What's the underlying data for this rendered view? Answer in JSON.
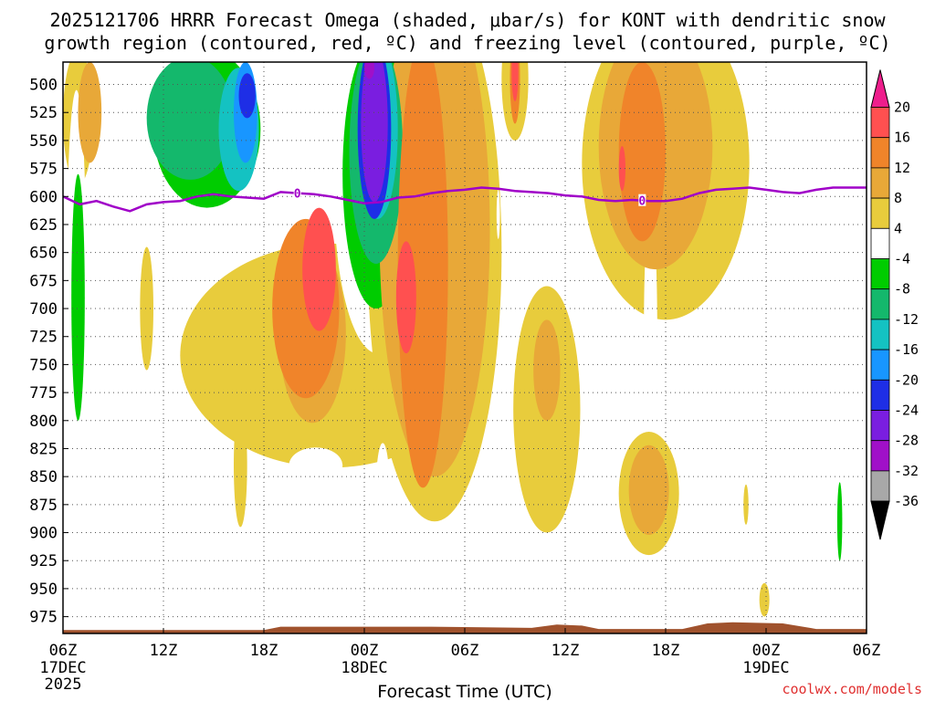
{
  "chart_data": {
    "type": "heatmap",
    "title_line1": "2025121706 HRRR Forecast Omega (shaded, μbar/s) for KONT with dendritic snow",
    "title_line2": "growth region (contoured, red, ºC) and freezing level (contoured, purple, ºC)",
    "xlabel": "Forecast Time (UTC)",
    "ylabel": "",
    "credit": "coolwx.com/models",
    "y_axis": {
      "units": "hPa",
      "range": [
        990,
        480
      ],
      "ticks": [
        500,
        525,
        550,
        575,
        600,
        625,
        650,
        675,
        700,
        725,
        750,
        775,
        800,
        825,
        850,
        875,
        900,
        925,
        950,
        975
      ]
    },
    "x_axis": {
      "units": "forecast hour",
      "range": [
        0,
        48
      ],
      "ticks": [
        {
          "hour": 0,
          "label": "06Z",
          "date": "17DEC",
          "year": "2025"
        },
        {
          "hour": 6,
          "label": "12Z",
          "date": "",
          "year": ""
        },
        {
          "hour": 12,
          "label": "18Z",
          "date": "",
          "year": ""
        },
        {
          "hour": 18,
          "label": "00Z",
          "date": "18DEC",
          "year": ""
        },
        {
          "hour": 24,
          "label": "06Z",
          "date": "",
          "year": ""
        },
        {
          "hour": 30,
          "label": "12Z",
          "date": "",
          "year": ""
        },
        {
          "hour": 36,
          "label": "18Z",
          "date": "",
          "year": ""
        },
        {
          "hour": 42,
          "label": "00Z",
          "date": "19DEC",
          "year": ""
        },
        {
          "hour": 48,
          "label": "06Z",
          "date": "",
          "year": ""
        }
      ]
    },
    "colorbar": {
      "labels": [
        "20",
        "16",
        "12",
        "8",
        "4",
        "-4",
        "-8",
        "-12",
        "-16",
        "-20",
        "-24",
        "-28",
        "-32",
        "-36"
      ],
      "colors": [
        "#ff5050",
        "#f0842a",
        "#e8a838",
        "#e8cc3c",
        "#ffffff",
        "#00cc00",
        "#14b86c",
        "#14c2c2",
        "#1896ff",
        "#1e2ee6",
        "#7a1ee0",
        "#a010c8",
        "#a8a8a8"
      ],
      "top_color": "#ee1e8c",
      "bottom_color": "#000000"
    },
    "freezing_level": {
      "label": "0",
      "color": "#a000c8",
      "points": [
        [
          0,
          600
        ],
        [
          1,
          607
        ],
        [
          2,
          604
        ],
        [
          3,
          609
        ],
        [
          4,
          613
        ],
        [
          5,
          607
        ],
        [
          6,
          605
        ],
        [
          7,
          604
        ],
        [
          8,
          600
        ],
        [
          9,
          598
        ],
        [
          10,
          600
        ],
        [
          11,
          601
        ],
        [
          12,
          602
        ],
        [
          13,
          596
        ],
        [
          14,
          597
        ],
        [
          15,
          598
        ],
        [
          16,
          600
        ],
        [
          17,
          603
        ],
        [
          18,
          606
        ],
        [
          19,
          605
        ],
        [
          20,
          601
        ],
        [
          21,
          600
        ],
        [
          22,
          597
        ],
        [
          23,
          595
        ],
        [
          24,
          594
        ],
        [
          25,
          592
        ],
        [
          26,
          593
        ],
        [
          27,
          595
        ],
        [
          28,
          596
        ],
        [
          29,
          597
        ],
        [
          30,
          599
        ],
        [
          31,
          600
        ],
        [
          32,
          603
        ],
        [
          33,
          604
        ],
        [
          34,
          603
        ],
        [
          35,
          604
        ],
        [
          36,
          604
        ],
        [
          37,
          602
        ],
        [
          38,
          597
        ],
        [
          39,
          594
        ],
        [
          40,
          593
        ],
        [
          41,
          592
        ],
        [
          42,
          594
        ],
        [
          43,
          596
        ],
        [
          44,
          597
        ],
        [
          45,
          594
        ],
        [
          46,
          592
        ],
        [
          47,
          592
        ],
        [
          48,
          592
        ]
      ],
      "label_hours": [
        14,
        34.6
      ]
    },
    "terrain": {
      "color": "#a0522d",
      "points": [
        [
          0,
          987
        ],
        [
          12,
          987
        ],
        [
          13,
          984
        ],
        [
          18,
          984
        ],
        [
          22,
          984
        ],
        [
          28,
          985
        ],
        [
          29.5,
          982
        ],
        [
          31,
          983
        ],
        [
          32,
          986
        ],
        [
          37,
          986
        ],
        [
          38.5,
          981
        ],
        [
          40,
          980
        ],
        [
          43,
          981
        ],
        [
          45,
          986
        ],
        [
          48,
          986
        ]
      ]
    },
    "omega_regions": [
      {
        "value": 4,
        "center": [
          0.9,
          530
        ],
        "extent": [
          0.9,
          60
        ]
      },
      {
        "value": 8,
        "center": [
          1.6,
          525
        ],
        "extent": [
          0.7,
          45
        ]
      },
      {
        "value": -4,
        "center": [
          0.8,
          680
        ],
        "extent": [
          0.6,
          175
        ]
      },
      {
        "value": -8,
        "center": [
          0.9,
          690
        ],
        "extent": [
          0.4,
          110
        ]
      },
      {
        "value": -4,
        "center": [
          2.0,
          905
        ],
        "extent": [
          0.2,
          28
        ]
      },
      {
        "value": 4,
        "center": [
          5.0,
          700
        ],
        "extent": [
          0.4,
          55
        ]
      },
      {
        "value": -4,
        "center": [
          8.8,
          560
        ],
        "extent": [
          4.0,
          85
        ]
      },
      {
        "value": -8,
        "center": [
          8.6,
          540
        ],
        "extent": [
          3.2,
          70
        ]
      },
      {
        "value": -12,
        "center": [
          7.6,
          530
        ],
        "extent": [
          2.6,
          55
        ]
      },
      {
        "value": -16,
        "center": [
          10.5,
          540
        ],
        "extent": [
          1.2,
          55
        ]
      },
      {
        "value": -20,
        "center": [
          10.9,
          525
        ],
        "extent": [
          0.7,
          45
        ]
      },
      {
        "value": -24,
        "center": [
          11.0,
          510
        ],
        "extent": [
          0.5,
          20
        ]
      },
      {
        "value": -4,
        "center": [
          14.7,
          535
        ],
        "extent": [
          1.0,
          60
        ]
      },
      {
        "value": 4,
        "center": [
          16.0,
          742
        ],
        "extent": [
          9.0,
          100
        ]
      },
      {
        "value": 8,
        "center": [
          14.9,
          722
        ],
        "extent": [
          2.0,
          80
        ]
      },
      {
        "value": 12,
        "center": [
          14.5,
          700
        ],
        "extent": [
          2.0,
          80
        ]
      },
      {
        "value": 16,
        "center": [
          15.3,
          665
        ],
        "extent": [
          1.0,
          55
        ]
      },
      {
        "value": 20,
        "center": [
          15.2,
          655
        ],
        "extent": [
          0.4,
          30
        ]
      },
      {
        "value": 4,
        "center": [
          10.6,
          840
        ],
        "extent": [
          0.4,
          55
        ]
      },
      {
        "value": -4,
        "center": [
          15.1,
          840
        ],
        "extent": [
          1.6,
          16
        ]
      },
      {
        "value": -4,
        "center": [
          18.8,
          600
        ],
        "extent": [
          2.6,
          140
        ]
      },
      {
        "value": -8,
        "center": [
          18.7,
          580
        ],
        "extent": [
          2.0,
          120
        ]
      },
      {
        "value": -12,
        "center": [
          18.7,
          560
        ],
        "extent": [
          1.6,
          100
        ]
      },
      {
        "value": -16,
        "center": [
          18.8,
          540
        ],
        "extent": [
          1.2,
          80
        ]
      },
      {
        "value": -24,
        "center": [
          18.6,
          540
        ],
        "extent": [
          1.0,
          80
        ]
      },
      {
        "value": -28,
        "center": [
          18.6,
          535
        ],
        "extent": [
          0.8,
          70
        ]
      },
      {
        "value": -32,
        "center": [
          18.3,
          485
        ],
        "extent": [
          0.3,
          10
        ]
      },
      {
        "value": 4,
        "center": [
          22.2,
          650
        ],
        "extent": [
          4.0,
          240
        ]
      },
      {
        "value": 8,
        "center": [
          22.2,
          630
        ],
        "extent": [
          3.3,
          220
        ]
      },
      {
        "value": 12,
        "center": [
          21.5,
          660
        ],
        "extent": [
          1.5,
          200
        ]
      },
      {
        "value": 16,
        "center": [
          20.5,
          690
        ],
        "extent": [
          0.6,
          50
        ]
      },
      {
        "value": 20,
        "center": [
          20.5,
          685
        ],
        "extent": [
          0.2,
          25
        ]
      },
      {
        "value": -4,
        "center": [
          19.1,
          860
        ],
        "extent": [
          0.4,
          40
        ]
      },
      {
        "value": -4,
        "center": [
          22.9,
          810
        ],
        "extent": [
          0.4,
          22
        ]
      },
      {
        "value": 4,
        "center": [
          27.0,
          495
        ],
        "extent": [
          0.8,
          55
        ]
      },
      {
        "value": 12,
        "center": [
          27.0,
          495
        ],
        "extent": [
          0.3,
          40
        ]
      },
      {
        "value": 20,
        "center": [
          27.0,
          490
        ],
        "extent": [
          0.2,
          25
        ]
      },
      {
        "value": -4,
        "center": [
          28.6,
          560
        ],
        "extent": [
          0.7,
          65
        ]
      },
      {
        "value": -4,
        "center": [
          26.0,
          616
        ],
        "extent": [
          0.1,
          22
        ]
      },
      {
        "value": 4,
        "center": [
          28.9,
          790
        ],
        "extent": [
          2.0,
          110
        ]
      },
      {
        "value": 8,
        "center": [
          28.9,
          755
        ],
        "extent": [
          0.8,
          45
        ]
      },
      {
        "value": -4,
        "center": [
          26.8,
          752
        ],
        "extent": [
          0.1,
          22
        ]
      },
      {
        "value": 4,
        "center": [
          36.0,
          570
        ],
        "extent": [
          5.0,
          140
        ]
      },
      {
        "value": 8,
        "center": [
          35.4,
          555
        ],
        "extent": [
          3.4,
          110
        ]
      },
      {
        "value": 12,
        "center": [
          34.6,
          560
        ],
        "extent": [
          1.4,
          80
        ]
      },
      {
        "value": 16,
        "center": [
          33.4,
          575
        ],
        "extent": [
          0.2,
          20
        ]
      },
      {
        "value": -4,
        "center": [
          35.1,
          720
        ],
        "extent": [
          0.4,
          110
        ]
      },
      {
        "value": 4,
        "center": [
          35.0,
          865
        ],
        "extent": [
          1.8,
          55
        ]
      },
      {
        "value": 8,
        "center": [
          35.0,
          862
        ],
        "extent": [
          1.2,
          40
        ]
      },
      {
        "value": 4,
        "center": [
          41.9,
          960
        ],
        "extent": [
          0.3,
          15
        ]
      },
      {
        "value": 4,
        "center": [
          40.8,
          875
        ],
        "extent": [
          0.15,
          18
        ]
      },
      {
        "value": -4,
        "center": [
          42.7,
          955
        ],
        "extent": [
          0.4,
          25
        ]
      },
      {
        "value": -4,
        "center": [
          46.4,
          895
        ],
        "extent": [
          0.3,
          55
        ]
      },
      {
        "value": -8,
        "center": [
          46.4,
          890
        ],
        "extent": [
          0.15,
          35
        ]
      }
    ]
  }
}
